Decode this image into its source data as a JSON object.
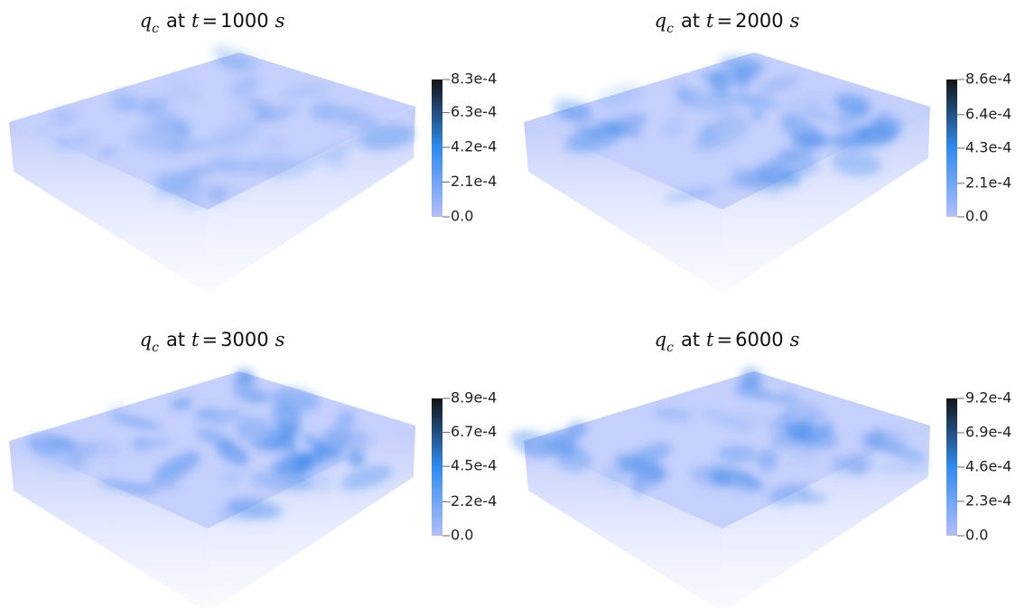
{
  "panels": [
    {
      "title": {
        "var": "q",
        "sub": "c",
        "word": "at",
        "tvar": "t",
        "eq": "=",
        "time": "1000",
        "unit": "s"
      },
      "colorbar": {
        "lim": [
          0,
          0.00083
        ],
        "ticks": [
          {
            "value": 0,
            "label": "0.0"
          },
          {
            "value": 0.00021,
            "label": "2.1e-4"
          },
          {
            "value": 0.00042,
            "label": "4.2e-4"
          },
          {
            "value": 0.00063,
            "label": "6.3e-4"
          },
          {
            "value": 0.00083,
            "label": "8.3e-4"
          }
        ]
      }
    },
    {
      "title": {
        "var": "q",
        "sub": "c",
        "word": "at",
        "tvar": "t",
        "eq": "=",
        "time": "2000",
        "unit": "s"
      },
      "colorbar": {
        "lim": [
          0,
          0.00086
        ],
        "ticks": [
          {
            "value": 0,
            "label": "0.0"
          },
          {
            "value": 0.00021,
            "label": "2.1e-4"
          },
          {
            "value": 0.00043,
            "label": "4.3e-4"
          },
          {
            "value": 0.00064,
            "label": "6.4e-4"
          },
          {
            "value": 0.00086,
            "label": "8.6e-4"
          }
        ]
      }
    },
    {
      "title": {
        "var": "q",
        "sub": "c",
        "word": "at",
        "tvar": "t",
        "eq": "=",
        "time": "3000",
        "unit": "s"
      },
      "colorbar": {
        "lim": [
          0,
          0.00089
        ],
        "ticks": [
          {
            "value": 0,
            "label": "0.0"
          },
          {
            "value": 0.00022,
            "label": "2.2e-4"
          },
          {
            "value": 0.00045,
            "label": "4.5e-4"
          },
          {
            "value": 0.00067,
            "label": "6.7e-4"
          },
          {
            "value": 0.00089,
            "label": "8.9e-4"
          }
        ]
      }
    },
    {
      "title": {
        "var": "q",
        "sub": "c",
        "word": "at",
        "tvar": "t",
        "eq": "=",
        "time": "6000",
        "unit": "s"
      },
      "colorbar": {
        "lim": [
          0,
          0.00092
        ],
        "ticks": [
          {
            "value": 0,
            "label": "0.0"
          },
          {
            "value": 0.00023,
            "label": "2.3e-4"
          },
          {
            "value": 0.00046,
            "label": "4.6e-4"
          },
          {
            "value": 0.00069,
            "label": "6.9e-4"
          },
          {
            "value": 0.00092,
            "label": "9.2e-4"
          }
        ]
      }
    }
  ]
}
